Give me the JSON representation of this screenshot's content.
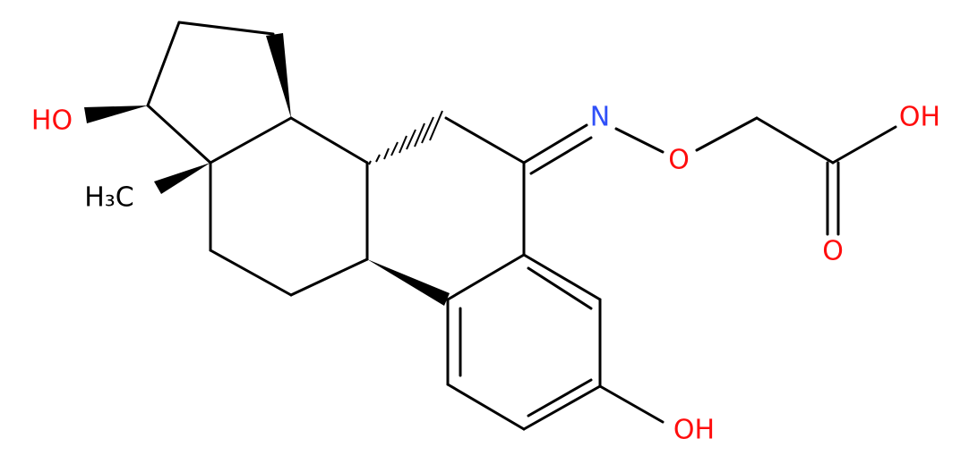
{
  "atoms": [
    {
      "label": "HO"
    },
    {
      "label": "H₃C"
    },
    {
      "label": "N"
    },
    {
      "label": "O"
    },
    {
      "label": "OH"
    },
    {
      "label": "O"
    },
    {
      "label": "OH"
    }
  ]
}
